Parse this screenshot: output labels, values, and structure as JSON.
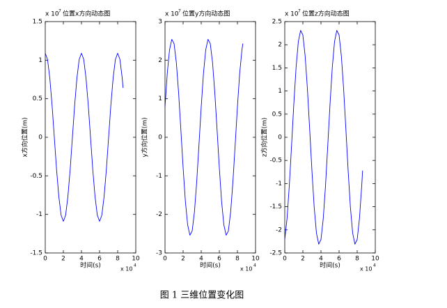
{
  "caption": "图 1 三维位置变化图",
  "chart_data": [
    {
      "type": "line",
      "title": "位置x方向动态图",
      "ylabel": "x方向位置(m)",
      "xlabel": "时间(s)",
      "y_multiplier": {
        "base": "x 10",
        "power": "7"
      },
      "x_multiplier": {
        "base": "x 10",
        "power": "4"
      },
      "color": "#0000ff",
      "x": [
        0,
        0.25,
        0.5,
        0.75,
        1,
        1.25,
        1.5,
        1.75,
        2,
        2.25,
        2.5,
        2.75,
        3,
        3.25,
        3.5,
        3.75,
        4,
        4.25,
        4.5,
        4.75,
        5,
        5.25,
        5.5,
        5.75,
        6,
        6.25,
        6.5,
        6.75,
        7,
        7.25,
        7.5,
        7.75,
        8,
        8.25,
        8.5,
        8.6
      ],
      "values": [
        1.09,
        1.01,
        0.77,
        0.42,
        0,
        -0.42,
        -0.77,
        -1.01,
        -1.09,
        -1.01,
        -0.77,
        -0.42,
        0,
        0.42,
        0.77,
        1.01,
        1.09,
        1.01,
        0.77,
        0.42,
        0,
        -0.42,
        -0.77,
        -1.01,
        -1.09,
        -1.01,
        -0.77,
        -0.42,
        0,
        0.42,
        0.77,
        1.01,
        1.09,
        1.01,
        0.77,
        0.64
      ],
      "xlim": [
        0,
        10
      ],
      "xticks": [
        0,
        2,
        4,
        6,
        8,
        10
      ],
      "ylim": [
        -1.5,
        1.5
      ],
      "yticks": [
        -1.5,
        -1,
        -0.5,
        0,
        0.5,
        1,
        1.5
      ]
    },
    {
      "type": "line",
      "title": "位置y方向动态图",
      "ylabel": "y方向位置(m)",
      "xlabel": "时间(s)",
      "y_multiplier": {
        "base": "x 10",
        "power": "7"
      },
      "x_multiplier": {
        "base": "x 10",
        "power": "4"
      },
      "color": "#0000ff",
      "x": [
        0,
        0.25,
        0.5,
        0.75,
        1,
        1.25,
        1.5,
        1.75,
        2,
        2.25,
        2.5,
        2.75,
        3,
        3.25,
        3.5,
        3.75,
        4,
        4.25,
        4.5,
        4.75,
        5,
        5.25,
        5.5,
        5.75,
        6,
        6.25,
        6.5,
        6.75,
        7,
        7.25,
        7.5,
        7.75,
        8,
        8.25,
        8.5,
        8.6
      ],
      "values": [
        0.79,
        1.66,
        2.27,
        2.54,
        2.43,
        1.94,
        1.16,
        0.2,
        -0.79,
        -1.66,
        -2.27,
        -2.54,
        -2.43,
        -1.94,
        -1.16,
        -0.2,
        0.79,
        1.66,
        2.27,
        2.54,
        2.43,
        1.94,
        1.16,
        0.2,
        -0.79,
        -1.66,
        -2.27,
        -2.54,
        -2.43,
        -1.94,
        -1.16,
        -0.2,
        0.79,
        1.66,
        2.27,
        2.43
      ],
      "xlim": [
        0,
        10
      ],
      "xticks": [
        0,
        2,
        4,
        6,
        8,
        10
      ],
      "ylim": [
        -3,
        3
      ],
      "yticks": [
        -3,
        -2,
        -1,
        0,
        1,
        2,
        3
      ]
    },
    {
      "type": "line",
      "title": "位置z方向动态图",
      "ylabel": "z方向位置(m)",
      "xlabel": "时间(s)",
      "y_multiplier": {
        "base": "x 10",
        "power": "7"
      },
      "x_multiplier": {
        "base": "x 10",
        "power": "4"
      },
      "color": "#0000ff",
      "x": [
        0,
        0.25,
        0.5,
        0.75,
        1,
        1.25,
        1.5,
        1.75,
        2,
        2.25,
        2.5,
        2.75,
        3,
        3.25,
        3.5,
        3.75,
        4,
        4.25,
        4.5,
        4.75,
        5,
        5.25,
        5.5,
        5.75,
        6,
        6.25,
        6.5,
        6.75,
        7,
        7.25,
        7.5,
        7.75,
        8,
        8.25,
        8.5,
        8.6
      ],
      "values": [
        -2.21,
        -1.76,
        -1.05,
        -0.18,
        0.72,
        1.51,
        2.07,
        2.31,
        2.21,
        1.76,
        1.05,
        0.18,
        -0.72,
        -1.51,
        -2.07,
        -2.31,
        -2.21,
        -1.76,
        -1.05,
        -0.18,
        0.72,
        1.51,
        2.07,
        2.31,
        2.21,
        1.76,
        1.05,
        0.18,
        -0.72,
        -1.51,
        -2.07,
        -2.31,
        -2.21,
        -1.76,
        -1.05,
        -0.72
      ],
      "xlim": [
        0,
        10
      ],
      "xticks": [
        0,
        2,
        4,
        6,
        8,
        10
      ],
      "ylim": [
        -2.5,
        2.5
      ],
      "yticks": [
        -2.5,
        -2,
        -1.5,
        -1,
        -0.5,
        0,
        0.5,
        1,
        1.5,
        2,
        2.5
      ]
    }
  ]
}
